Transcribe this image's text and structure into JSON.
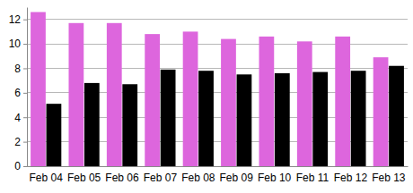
{
  "chart_data": {
    "type": "bar",
    "categories": [
      "Feb 04",
      "Feb 05",
      "Feb 06",
      "Feb 07",
      "Feb 08",
      "Feb 09",
      "Feb 10",
      "Feb 11",
      "Feb 12",
      "Feb 13"
    ],
    "series": [
      {
        "color": "#dd66dd",
        "values": [
          12.6,
          11.7,
          11.7,
          10.8,
          11.0,
          10.4,
          10.6,
          10.2,
          10.6,
          8.9
        ]
      },
      {
        "color": "#000000",
        "values": [
          5.1,
          6.8,
          6.7,
          7.9,
          7.8,
          7.5,
          7.6,
          7.7,
          7.8,
          8.2
        ]
      }
    ],
    "ylim": [
      0,
      13
    ],
    "yticks": [
      0,
      2,
      4,
      6,
      8,
      10,
      12
    ],
    "grid": true
  }
}
